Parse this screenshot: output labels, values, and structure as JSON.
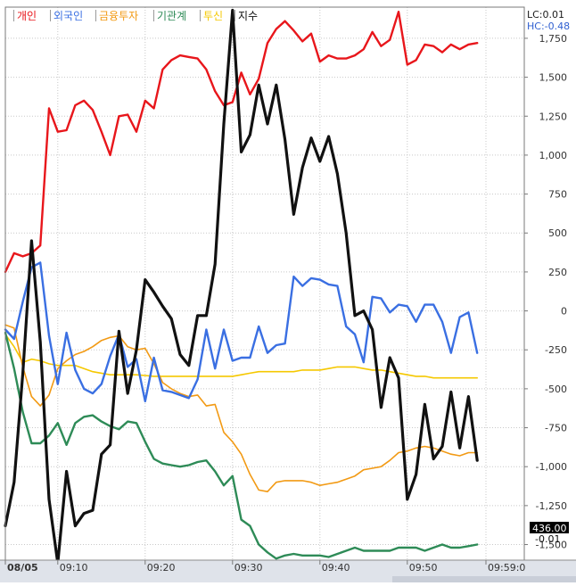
{
  "info": {
    "lc_label": "LC:0.01",
    "hc_label": "HC:-0.48",
    "last_value_label": "436.00",
    "last_value_label2": "-0.01"
  },
  "colors": {
    "individual": "#e8161b",
    "foreign": "#3a6fe2",
    "financial": "#f29a14",
    "institution": "#2e8b57",
    "trust": "#f5c800",
    "index": "#111111"
  },
  "chart_data": {
    "type": "line",
    "xlabel": "",
    "ylabel": "",
    "ylim": [
      -1600,
      1950
    ],
    "grid": true,
    "legend_position": "top-left",
    "x": [
      "09:04",
      "09:05",
      "09:06",
      "09:07",
      "09:08",
      "09:09",
      "09:10",
      "09:11",
      "09:12",
      "09:13",
      "09:14",
      "09:15",
      "09:16",
      "09:17",
      "09:18",
      "09:19",
      "09:20",
      "09:21",
      "09:22",
      "09:23",
      "09:24",
      "09:25",
      "09:26",
      "09:27",
      "09:28",
      "09:29",
      "09:30",
      "09:31",
      "09:32",
      "09:33",
      "09:34",
      "09:35",
      "09:36",
      "09:37",
      "09:38",
      "09:39",
      "09:40",
      "09:41",
      "09:42",
      "09:43",
      "09:44",
      "09:45",
      "09:46",
      "09:47",
      "09:48",
      "09:49",
      "09:50",
      "09:51",
      "09:52",
      "09:53",
      "09:54",
      "09:55",
      "09:56",
      "09:57",
      "09:58"
    ],
    "x_ticks": [
      {
        "label": "08/05",
        "at": "09:04"
      },
      {
        "label": "09:10",
        "at": "09:10"
      },
      {
        "label": "09:20",
        "at": "09:20"
      },
      {
        "label": "09:30",
        "at": "09:30"
      },
      {
        "label": "09:40",
        "at": "09:40"
      },
      {
        "label": "09:50",
        "at": "09:50"
      },
      {
        "label": "09:59:0",
        "at": "09:59"
      }
    ],
    "y_ticks": [
      "1,750",
      "1,500",
      "1,250",
      "1,000",
      "750",
      "500",
      "250",
      "0",
      "-250",
      "-500",
      "-750",
      "-1,000",
      "-1,250",
      "-1,500"
    ],
    "y_tick_values": [
      1750,
      1500,
      1250,
      1000,
      750,
      500,
      250,
      0,
      -250,
      -500,
      -750,
      -1000,
      -1250,
      -1500
    ],
    "series": [
      {
        "name": "개인",
        "key": "individual",
        "values": [
          250,
          370,
          350,
          370,
          420,
          1300,
          1150,
          1160,
          1320,
          1350,
          1290,
          1150,
          1000,
          1250,
          1260,
          1150,
          1350,
          1300,
          1550,
          1610,
          1640,
          1630,
          1620,
          1550,
          1410,
          1320,
          1340,
          1530,
          1390,
          1490,
          1720,
          1810,
          1860,
          1800,
          1730,
          1780,
          1600,
          1640,
          1620,
          1620,
          1640,
          1680,
          1790,
          1700,
          1740,
          1920,
          1580,
          1610,
          1710,
          1700,
          1660,
          1710,
          1680,
          1710,
          1720
        ]
      },
      {
        "name": "외국인",
        "key": "foreign",
        "values": [
          -120,
          -180,
          60,
          280,
          310,
          -160,
          -470,
          -140,
          -380,
          -500,
          -530,
          -470,
          -290,
          -150,
          -360,
          -310,
          -580,
          -300,
          -510,
          -520,
          -540,
          -560,
          -440,
          -120,
          -370,
          -120,
          -320,
          -300,
          -300,
          -100,
          -270,
          -220,
          -210,
          220,
          160,
          210,
          200,
          170,
          160,
          -100,
          -150,
          -330,
          90,
          80,
          -10,
          40,
          30,
          -70,
          40,
          40,
          -70,
          -270,
          -40,
          -10,
          -270
        ]
      },
      {
        "name": "금융투자",
        "key": "financial",
        "values": [
          -90,
          -110,
          -360,
          -550,
          -610,
          -540,
          -370,
          -320,
          -280,
          -260,
          -230,
          -190,
          -170,
          -160,
          -230,
          -250,
          -240,
          -340,
          -460,
          -500,
          -530,
          -550,
          -540,
          -610,
          -600,
          -780,
          -840,
          -920,
          -1050,
          -1150,
          -1160,
          -1100,
          -1090,
          -1090,
          -1090,
          -1100,
          -1120,
          -1110,
          -1100,
          -1080,
          -1060,
          -1020,
          -1010,
          -1000,
          -960,
          -910,
          -900,
          -880,
          -870,
          -880,
          -900,
          -920,
          -930,
          -910,
          -910
        ]
      },
      {
        "name": "기관계",
        "key": "institution",
        "values": [
          -140,
          -370,
          -650,
          -850,
          -850,
          -800,
          -720,
          -860,
          -720,
          -680,
          -670,
          -710,
          -740,
          -760,
          -710,
          -720,
          -840,
          -950,
          -980,
          -990,
          -1000,
          -990,
          -970,
          -960,
          -1030,
          -1120,
          -1060,
          -1340,
          -1380,
          -1500,
          -1550,
          -1590,
          -1570,
          -1560,
          -1570,
          -1570,
          -1570,
          -1580,
          -1560,
          -1540,
          -1520,
          -1540,
          -1540,
          -1540,
          -1540,
          -1520,
          -1520,
          -1520,
          -1540,
          -1520,
          -1500,
          -1520,
          -1520,
          -1510,
          -1500
        ]
      },
      {
        "name": "투신",
        "key": "trust",
        "values": [
          -150,
          -230,
          -330,
          -310,
          -320,
          -340,
          -350,
          -350,
          -350,
          -370,
          -390,
          -400,
          -410,
          -410,
          -410,
          -410,
          -415,
          -420,
          -420,
          -420,
          -420,
          -420,
          -420,
          -420,
          -420,
          -420,
          -420,
          -410,
          -400,
          -390,
          -390,
          -390,
          -390,
          -390,
          -380,
          -380,
          -380,
          -370,
          -360,
          -360,
          -360,
          -370,
          -380,
          -380,
          -390,
          -400,
          -410,
          -420,
          -420,
          -430,
          -430,
          -430,
          -430,
          -430,
          -430
        ]
      },
      {
        "name": "지수",
        "key": "index",
        "values": [
          -1380,
          -1100,
          -400,
          450,
          -200,
          -1210,
          -1620,
          -1030,
          -1380,
          -1300,
          -1280,
          -920,
          -860,
          -130,
          -530,
          -250,
          200,
          120,
          30,
          -50,
          -280,
          -350,
          -30,
          -30,
          300,
          1200,
          1930,
          1020,
          1130,
          1450,
          1200,
          1450,
          1100,
          620,
          920,
          1110,
          960,
          1120,
          880,
          500,
          -30,
          0,
          -120,
          -620,
          -300,
          -430,
          -1210,
          -1050,
          -600,
          -950,
          -870,
          -520,
          -880,
          -550,
          -960
        ]
      }
    ]
  }
}
